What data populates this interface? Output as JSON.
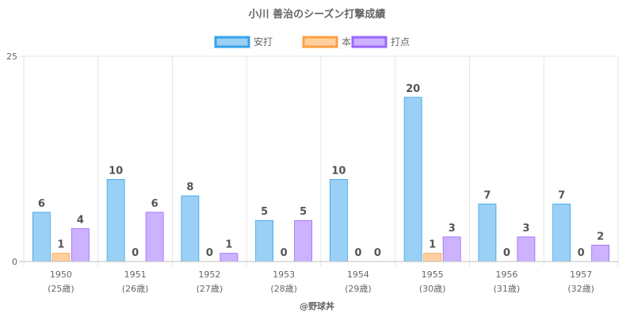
{
  "chart_data": {
    "type": "bar",
    "title": "小川 善治のシーズン打撃成績",
    "categories": [
      "1950",
      "1951",
      "1952",
      "1953",
      "1954",
      "1955",
      "1956",
      "1957"
    ],
    "category_sublabels": [
      "(25歳)",
      "(26歳)",
      "(27歳)",
      "(28歳)",
      "(29歳)",
      "(30歳)",
      "(31歳)",
      "(32歳)"
    ],
    "series": [
      {
        "name": "安打",
        "values": [
          6,
          10,
          8,
          5,
          10,
          20,
          7,
          7
        ],
        "color": "#9ad0f5",
        "border": "#36a2eb"
      },
      {
        "name": "本塁打",
        "values": [
          1,
          0,
          0,
          0,
          0,
          1,
          0,
          0
        ],
        "color": "#ffcf9f",
        "border": "#ff9f40"
      },
      {
        "name": "打点",
        "values": [
          4,
          6,
          1,
          5,
          0,
          3,
          3,
          2
        ],
        "color": "#ccb2ff",
        "border": "#9966ff"
      }
    ],
    "ylim": [
      0,
      25
    ],
    "y_ticks": [
      "0",
      "25"
    ],
    "legend_position": "top",
    "grid": true,
    "credit": "@野球丼"
  }
}
